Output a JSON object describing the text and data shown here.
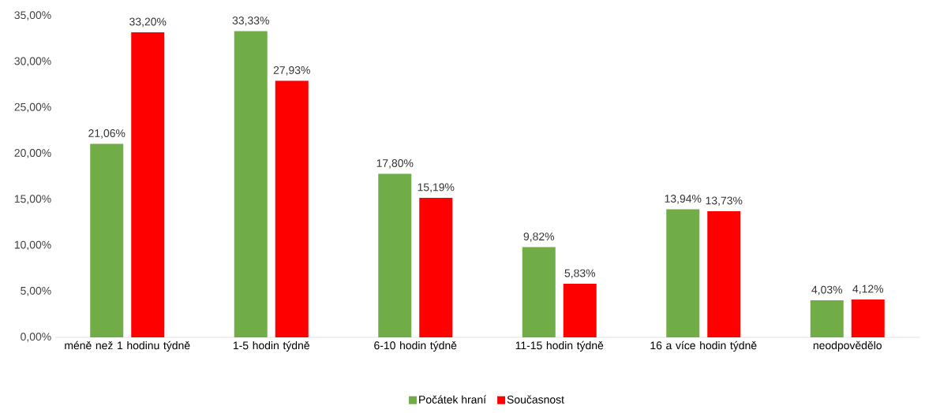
{
  "chart_data": {
    "type": "bar",
    "categories": [
      "méně než 1 hodinu týdně",
      "1-5 hodin týdně",
      "6-10 hodin týdně",
      "11-15 hodin týdně",
      "16 a více hodin týdně",
      "neodpovědělo"
    ],
    "series": [
      {
        "name": "Počátek hraní",
        "color": "#70ad47",
        "values": [
          21.06,
          33.33,
          17.8,
          9.82,
          13.94,
          4.03
        ],
        "value_labels": [
          "21,06%",
          "33,33%",
          "17,80%",
          "9,82%",
          "13,94%",
          "4,03%"
        ]
      },
      {
        "name": "Současnost",
        "color": "#ff0000",
        "values": [
          33.2,
          27.93,
          15.19,
          5.83,
          13.73,
          4.12
        ],
        "value_labels": [
          "33,20%",
          "27,93%",
          "15,19%",
          "5,83%",
          "13,73%",
          "4,12%"
        ]
      }
    ],
    "ylim": [
      0,
      35
    ],
    "yticks": [
      {
        "value": 0,
        "label": "0,00%"
      },
      {
        "value": 5,
        "label": "5,00%"
      },
      {
        "value": 10,
        "label": "10,00%"
      },
      {
        "value": 15,
        "label": "15,00%"
      },
      {
        "value": 20,
        "label": "20,00%"
      },
      {
        "value": 25,
        "label": "25,00%"
      },
      {
        "value": 30,
        "label": "30,00%"
      },
      {
        "value": 35,
        "label": "35,00%"
      }
    ],
    "legend": "bottom"
  }
}
